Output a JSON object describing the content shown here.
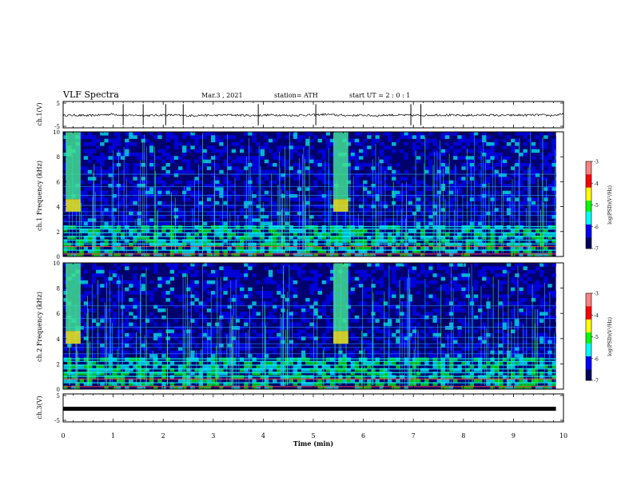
{
  "header": {
    "title": "VLF Spectra",
    "date": "Mar.3 , 2021",
    "station": "station= ATH",
    "start": "start UT = 2 : 0 : 1"
  },
  "colors": {
    "spectrogram_colormap": [
      "#000060",
      "#0000ff",
      "#00ffff",
      "#00ff00",
      "#ffff00",
      "#ff0000",
      "#ff8080"
    ],
    "waveform": "#000000",
    "frame": "#000000"
  },
  "chart_data": [
    {
      "type": "line",
      "panel": "ch1-waveform",
      "ylabel": "ch.1(V)",
      "ylim": [
        -5,
        5
      ],
      "yticks": [
        "5",
        "-5"
      ],
      "xlim": [
        0,
        10
      ],
      "series": [
        {
          "values": [
            -0.3,
            -0.2,
            -0.4,
            -0.1,
            0.2,
            -0.3,
            -0.2,
            -0.3,
            -0.1,
            -0.2,
            -0.4,
            -0.2,
            -0.3,
            -0.1,
            -0.2,
            -0.3,
            -0.2,
            -0.1,
            -0.3,
            -0.2,
            -0.1,
            0.1,
            -0.2,
            -0.3,
            -0.2,
            -0.4,
            -0.1,
            -0.2,
            -0.3,
            -0.2,
            -0.1,
            -0.2,
            -0.3,
            -0.2,
            -0.1,
            -0.3,
            -0.2,
            -0.2,
            -0.1,
            -0.3,
            0.1
          ]
        }
      ],
      "spikes_min": [
        1.2,
        1.6,
        2.05,
        2.4,
        3.9,
        5.05,
        6.95,
        7.15
      ]
    },
    {
      "type": "heatmap",
      "panel": "ch1-spectrogram",
      "ylabel": "ch.1 Frequency (kHz)",
      "ylim": [
        0,
        10
      ],
      "yticks": [
        "0",
        "2",
        "4",
        "6",
        "8",
        "10"
      ],
      "xlim": [
        0,
        10
      ],
      "bursts_min": [
        0.05,
        5.4
      ],
      "colorbar": {
        "label": "log(PSD)(V²/Hz)",
        "ticks": [
          "-3",
          "-4",
          "-5",
          "-6",
          "-7"
        ],
        "range": [
          -7,
          -3
        ]
      }
    },
    {
      "type": "heatmap",
      "panel": "ch2-spectrogram",
      "ylabel": "ch.2 Frequency (kHz)",
      "ylim": [
        0,
        10
      ],
      "yticks": [
        "0",
        "2",
        "4",
        "6",
        "8",
        "10"
      ],
      "xlim": [
        0,
        10
      ],
      "bursts_min": [
        0.05,
        5.4
      ],
      "colorbar": {
        "label": "log(PSD)(V²/Hz)",
        "ticks": [
          "-3",
          "-4",
          "-5",
          "-6",
          "-7"
        ],
        "range": [
          -7,
          -3
        ]
      }
    },
    {
      "type": "line",
      "panel": "ch3-waveform",
      "ylabel": "ch.3(V)",
      "ylim": [
        -5,
        5
      ],
      "yticks": [
        "5",
        "-5"
      ],
      "xlim": [
        0,
        10
      ],
      "series": [
        {
          "values": [
            -0.3,
            -0.3,
            -0.3,
            -0.3,
            -0.3,
            -0.3,
            -0.3,
            -0.3,
            -0.3,
            -0.3,
            -0.3
          ]
        }
      ]
    }
  ],
  "xaxis": {
    "label": "Time (min)",
    "ticks": [
      "0",
      "1",
      "2",
      "3",
      "4",
      "5",
      "6",
      "7",
      "8",
      "9",
      "10"
    ]
  }
}
